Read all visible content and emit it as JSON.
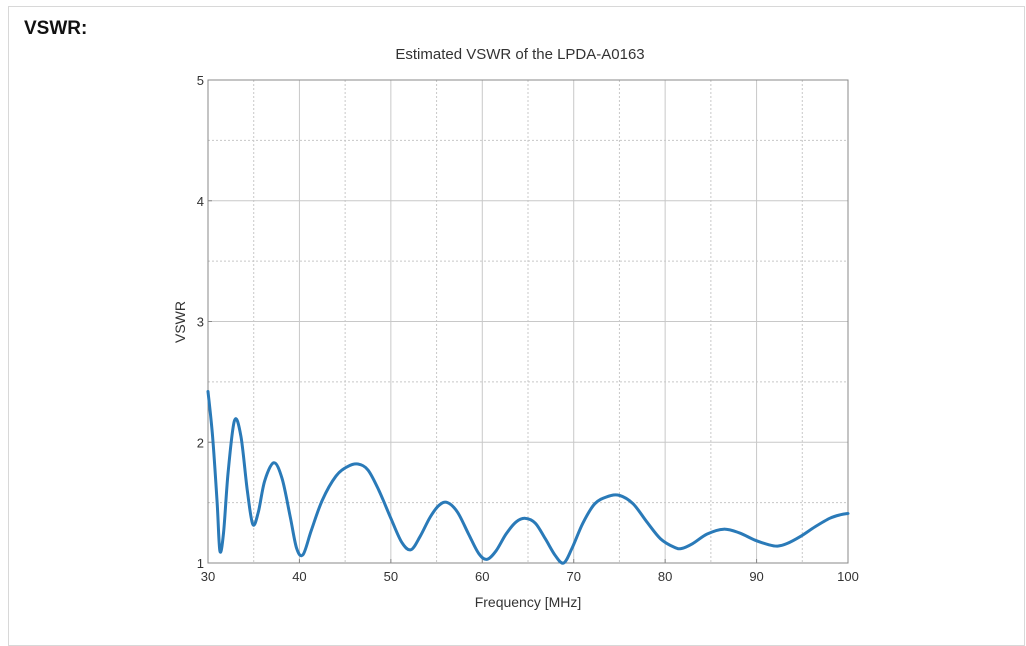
{
  "section": {
    "heading": "VSWR:"
  },
  "chart_data": {
    "type": "line",
    "title": "Estimated VSWR of the LPDA-A0163",
    "xlabel": "Frequency [MHz]",
    "ylabel": "VSWR",
    "xlim": [
      30,
      100
    ],
    "ylim": [
      1,
      5
    ],
    "x_ticks": [
      30,
      40,
      50,
      60,
      70,
      80,
      90,
      100
    ],
    "y_ticks": [
      1,
      2,
      3,
      4,
      5
    ],
    "grid": true,
    "legend": "none",
    "colors": {
      "line": "#2a7ab8",
      "grid": "#c8c8c8",
      "axis": "#888888"
    },
    "series": [
      {
        "x": [
          30,
          30.5,
          31,
          31.3,
          31.7,
          32.2,
          32.9,
          33.6,
          34.3,
          34.9,
          35.5,
          36.2,
          37.2,
          38.1,
          39,
          39.7,
          40.4,
          41.3,
          42.5,
          44,
          45.3,
          46.4,
          47.5,
          48.7,
          50,
          51.2,
          52.2,
          53.2,
          54.3,
          55.3,
          56.2,
          57.3,
          58.5,
          59.6,
          60.5,
          61.5,
          62.6,
          63.7,
          64.7,
          65.8,
          66.9,
          68,
          68.9,
          69.8,
          71,
          72.3,
          73.7,
          75,
          76.5,
          78,
          79.5,
          81,
          81.8,
          83,
          84.6,
          86.4,
          88.1,
          89.8,
          91.4,
          92.3,
          93.3,
          94.8,
          96.4,
          98,
          99.2,
          100
        ],
        "y": [
          2.42,
          2.05,
          1.5,
          1.1,
          1.25,
          1.75,
          2.18,
          2.05,
          1.6,
          1.32,
          1.42,
          1.68,
          1.83,
          1.7,
          1.38,
          1.12,
          1.07,
          1.27,
          1.52,
          1.72,
          1.8,
          1.82,
          1.77,
          1.6,
          1.37,
          1.17,
          1.11,
          1.22,
          1.38,
          1.48,
          1.5,
          1.42,
          1.24,
          1.08,
          1.03,
          1.1,
          1.24,
          1.34,
          1.37,
          1.33,
          1.2,
          1.06,
          1.0,
          1.12,
          1.33,
          1.49,
          1.55,
          1.56,
          1.49,
          1.34,
          1.2,
          1.13,
          1.12,
          1.16,
          1.24,
          1.28,
          1.25,
          1.19,
          1.15,
          1.14,
          1.16,
          1.22,
          1.3,
          1.37,
          1.4,
          1.41
        ]
      }
    ]
  }
}
